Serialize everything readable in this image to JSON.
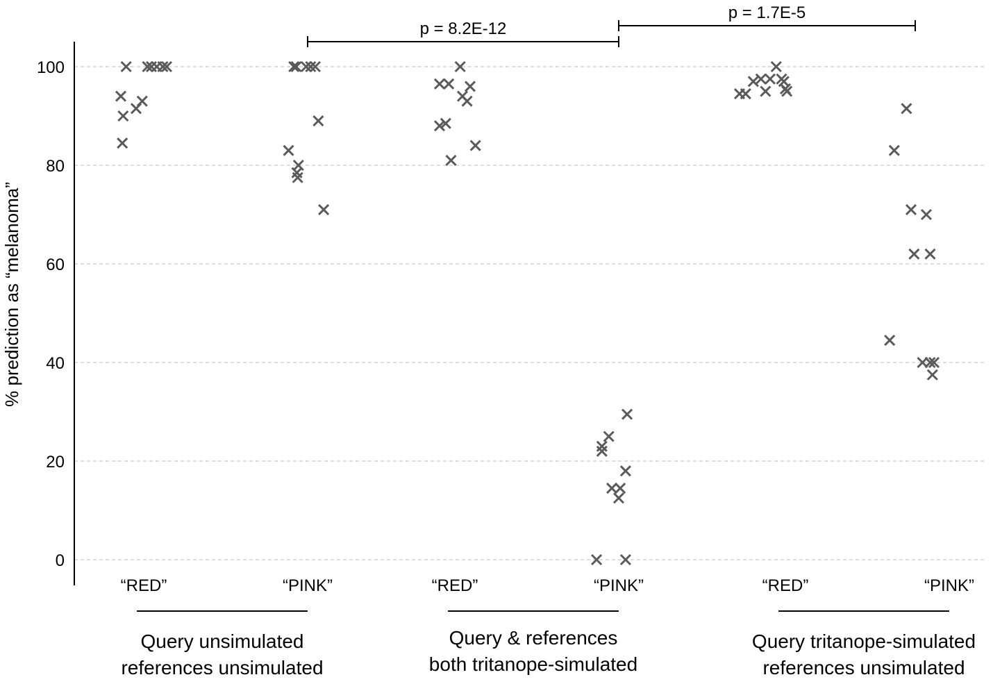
{
  "chart_data": {
    "type": "scatter",
    "ylabel": "% prediction as “melanoma”",
    "ylim": [
      0,
      100
    ],
    "yticks": [
      0,
      20,
      40,
      60,
      80,
      100
    ],
    "grid": true,
    "marker": "x",
    "marker_color": "#5a5a5a",
    "categories": [
      "“RED”",
      "“PINK”",
      "“RED”",
      "“PINK”",
      "“RED”",
      "“PINK”"
    ],
    "groups": [
      {
        "label_lines": [
          "Query unsimulated",
          "references unsimulated"
        ],
        "categories": [
          0,
          1
        ]
      },
      {
        "label_lines": [
          "Query & references",
          "both tritanope-simulated"
        ],
        "categories": [
          2,
          3
        ]
      },
      {
        "label_lines": [
          "Query tritanope-simulated",
          "references unsimulated"
        ],
        "categories": [
          4,
          5
        ]
      }
    ],
    "series": [
      {
        "category": 0,
        "points": [
          {
            "jitter": -0.3,
            "y": 94
          },
          {
            "jitter": -0.27,
            "y": 90
          },
          {
            "jitter": -0.28,
            "y": 84.5
          },
          {
            "jitter": -0.23,
            "y": 100
          },
          {
            "jitter": -0.1,
            "y": 91.5
          },
          {
            "jitter": -0.02,
            "y": 93
          },
          {
            "jitter": 0.05,
            "y": 100
          },
          {
            "jitter": 0.1,
            "y": 100
          },
          {
            "jitter": 0.17,
            "y": 100
          },
          {
            "jitter": 0.25,
            "y": 100
          },
          {
            "jitter": 0.3,
            "y": 100
          }
        ]
      },
      {
        "category": 1,
        "points": [
          {
            "jitter": -0.25,
            "y": 83
          },
          {
            "jitter": -0.18,
            "y": 100
          },
          {
            "jitter": -0.15,
            "y": 100
          },
          {
            "jitter": -0.12,
            "y": 80
          },
          {
            "jitter": -0.14,
            "y": 78.5
          },
          {
            "jitter": -0.13,
            "y": 77.5
          },
          {
            "jitter": -0.02,
            "y": 100
          },
          {
            "jitter": 0.04,
            "y": 100
          },
          {
            "jitter": 0.1,
            "y": 100
          },
          {
            "jitter": 0.14,
            "y": 89
          },
          {
            "jitter": 0.21,
            "y": 71
          }
        ]
      },
      {
        "category": 2,
        "points": [
          {
            "jitter": -0.2,
            "y": 96.5
          },
          {
            "jitter": -0.2,
            "y": 88
          },
          {
            "jitter": -0.12,
            "y": 88.5
          },
          {
            "jitter": -0.08,
            "y": 96.5
          },
          {
            "jitter": -0.05,
            "y": 81
          },
          {
            "jitter": 0.07,
            "y": 100
          },
          {
            "jitter": 0.1,
            "y": 94
          },
          {
            "jitter": 0.16,
            "y": 93
          },
          {
            "jitter": 0.2,
            "y": 96
          },
          {
            "jitter": 0.27,
            "y": 84
          }
        ]
      },
      {
        "category": 3,
        "points": [
          {
            "jitter": -0.29,
            "y": 0
          },
          {
            "jitter": -0.22,
            "y": 23
          },
          {
            "jitter": -0.22,
            "y": 22
          },
          {
            "jitter": -0.13,
            "y": 25
          },
          {
            "jitter": -0.09,
            "y": 14.5
          },
          {
            "jitter": 0.02,
            "y": 14.5
          },
          {
            "jitter": 0.0,
            "y": 12.5
          },
          {
            "jitter": 0.09,
            "y": 0
          },
          {
            "jitter": 0.09,
            "y": 18
          },
          {
            "jitter": 0.11,
            "y": 29.5
          }
        ]
      },
      {
        "category": 4,
        "points": [
          {
            "jitter": -0.6,
            "y": 94.5
          },
          {
            "jitter": -0.52,
            "y": 94.5
          },
          {
            "jitter": -0.42,
            "y": 97
          },
          {
            "jitter": -0.32,
            "y": 97.5
          },
          {
            "jitter": -0.26,
            "y": 95
          },
          {
            "jitter": -0.2,
            "y": 97.5
          },
          {
            "jitter": -0.12,
            "y": 100
          },
          {
            "jitter": -0.05,
            "y": 97.5
          },
          {
            "jitter": -0.02,
            "y": 97
          },
          {
            "jitter": 0.0,
            "y": 95.5
          },
          {
            "jitter": 0.02,
            "y": 95
          }
        ]
      },
      {
        "category": 5,
        "points": [
          {
            "jitter": -0.78,
            "y": 44.5
          },
          {
            "jitter": -0.72,
            "y": 83
          },
          {
            "jitter": -0.56,
            "y": 91.5
          },
          {
            "jitter": -0.5,
            "y": 71
          },
          {
            "jitter": -0.46,
            "y": 62
          },
          {
            "jitter": -0.35,
            "y": 40
          },
          {
            "jitter": -0.3,
            "y": 70
          },
          {
            "jitter": -0.25,
            "y": 40
          },
          {
            "jitter": -0.25,
            "y": 62
          },
          {
            "jitter": -0.22,
            "y": 37.5
          },
          {
            "jitter": -0.2,
            "y": 40
          }
        ]
      }
    ],
    "annotations": [
      {
        "text": "p = 8.2E-12",
        "from_category": 1,
        "to_category": 3
      },
      {
        "text": "p = 1.7E-5",
        "from_category": 3,
        "to_category": 5
      }
    ]
  }
}
